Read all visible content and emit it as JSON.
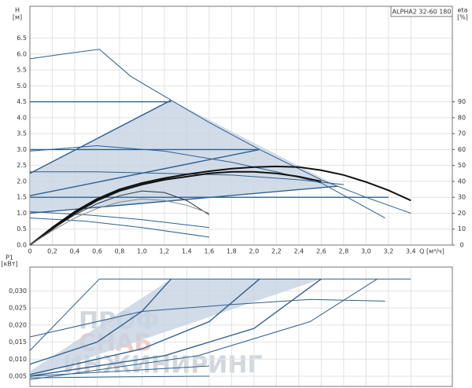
{
  "chart_data": [
    {
      "type": "line",
      "title": "ALPHA2 32-60 180",
      "y_label": "H",
      "y_unit": "[м]",
      "y2_label": "eta",
      "y2_unit": "[%]",
      "x_label": "Q [м³/ч]",
      "grid": true,
      "xlim": [
        0,
        3.77
      ],
      "ylim": [
        0,
        7.5
      ],
      "y2lim": [
        0,
        150
      ],
      "xticks": [
        0,
        {
          "value": 0.2,
          "label": "0,2"
        },
        {
          "value": 0.4,
          "label": "0,4"
        },
        {
          "value": 0.6,
          "label": "0,6"
        },
        {
          "value": 0.8,
          "label": "0,8"
        },
        {
          "value": 1,
          "label": "1,0"
        },
        {
          "value": 1.2,
          "label": "1,2"
        },
        {
          "value": 1.4,
          "label": "1,4"
        },
        {
          "value": 1.6,
          "label": "1,6"
        },
        {
          "value": 1.8,
          "label": "1,8"
        },
        {
          "value": 2,
          "label": "2,0"
        },
        {
          "value": 2.2,
          "label": "2,2"
        },
        {
          "value": 2.4,
          "label": "2,4"
        },
        {
          "value": 2.6,
          "label": "2,6"
        },
        {
          "value": 2.8,
          "label": "2,8"
        },
        {
          "value": 3,
          "label": "3,0"
        },
        {
          "value": 3.2,
          "label": "3,2"
        },
        {
          "value": 3.4,
          "label": "3,4"
        }
      ],
      "yticks": [
        {
          "value": 0,
          "label": "0.0"
        },
        0.5,
        {
          "value": 1,
          "label": "1.0"
        },
        1.5,
        {
          "value": 2,
          "label": "2.0"
        },
        2.5,
        {
          "value": 3,
          "label": "3.0"
        },
        3.5,
        {
          "value": 4,
          "label": "4.0"
        },
        4.5,
        {
          "value": 5,
          "label": "5.0"
        },
        5.5,
        {
          "value": 6,
          "label": "6.0"
        },
        6.5
      ],
      "y2ticks": [
        0,
        10,
        20,
        30,
        40,
        50,
        60,
        70,
        80,
        90
      ],
      "area_color": "#c5d3e2",
      "areas": [
        {
          "x": [
            0,
            0,
            1.26,
            2.75,
            2.2,
            0
          ],
          "values": [
            1.0,
            2.25,
            4.55,
            1.85,
            1.7,
            1.0
          ]
        }
      ],
      "series": [
        {
          "color": "#2f5f8e",
          "width": 1,
          "x": [
            0,
            0.3,
            0.62,
            0.9,
            1.26,
            1.6,
            2.05,
            2.6,
            3.0,
            3.4
          ],
          "values": [
            5.85,
            6.0,
            6.15,
            5.3,
            4.55,
            3.85,
            3.0,
            2.05,
            1.5,
            1.0
          ]
        },
        {
          "color": "#2f5f8e",
          "width": 1.4,
          "x": [
            0,
            1.26
          ],
          "values": [
            2.25,
            4.55
          ]
        },
        {
          "color": "#2f5f8e",
          "width": 1.4,
          "x": [
            0,
            2.05
          ],
          "values": [
            1.55,
            3.0
          ]
        },
        {
          "color": "#2f5f8e",
          "width": 1.4,
          "x": [
            0,
            2.75
          ],
          "values": [
            1.0,
            1.85
          ]
        },
        {
          "color": "#2f5f8e",
          "width": 1.4,
          "x": [
            0,
            1.26
          ],
          "values": [
            4.5,
            4.5
          ]
        },
        {
          "color": "#2f5f8e",
          "width": 1.4,
          "x": [
            0,
            2.05
          ],
          "values": [
            3.0,
            3.0
          ]
        },
        {
          "color": "#2f5f8e",
          "width": 1.4,
          "x": [
            0,
            3.2
          ],
          "values": [
            1.5,
            1.5
          ]
        },
        {
          "color": "#2f5f8e",
          "width": 1,
          "x": [
            0,
            0.6,
            1.2,
            1.8,
            2.2,
            2.6,
            3.17
          ],
          "values": [
            2.95,
            3.12,
            2.95,
            2.6,
            2.3,
            1.95,
            0.85
          ]
        },
        {
          "color": "#2f5f8e",
          "width": 1,
          "x": [
            0,
            0.6,
            1.2,
            1.8,
            2.4,
            2.8
          ],
          "values": [
            2.3,
            2.3,
            2.25,
            2.2,
            2.05,
            1.9
          ]
        },
        {
          "color": "#2f5f8e",
          "width": 1,
          "x": [
            0,
            0.5,
            1.0,
            1.6
          ],
          "values": [
            0.85,
            0.75,
            0.55,
            0.25
          ]
        },
        {
          "color": "#2f5f8e",
          "width": 1,
          "x": [
            0,
            0.5,
            1.0,
            1.6
          ],
          "values": [
            1.05,
            0.95,
            0.8,
            0.55
          ]
        },
        {
          "color": "#111111",
          "width": 2,
          "axis": "y2",
          "x": [
            0,
            0.2,
            0.4,
            0.6,
            0.8,
            1.0,
            1.2,
            1.4,
            1.6,
            1.8,
            2.0,
            2.2,
            2.4,
            2.6,
            2.8,
            3.0,
            3.2,
            3.4
          ],
          "values": [
            0,
            11,
            21,
            29,
            35,
            39,
            42,
            44.4,
            46.4,
            48,
            49,
            49.4,
            49,
            47,
            44,
            39.6,
            34.4,
            28
          ]
        },
        {
          "color": "#111111",
          "width": 2,
          "axis": "y2",
          "x": [
            0,
            0.2,
            0.4,
            0.6,
            0.8,
            1.0,
            1.2,
            1.4,
            1.6,
            1.8,
            2.0,
            2.2,
            2.4,
            2.6
          ],
          "values": [
            0,
            10,
            20,
            28,
            34,
            38,
            41,
            43,
            45,
            46,
            46,
            45,
            43,
            40
          ]
        },
        {
          "color": "#333333",
          "width": 1,
          "axis": "y2",
          "x": [
            0,
            0.2,
            0.4,
            0.6,
            0.8,
            1.0,
            1.2,
            1.4,
            1.6
          ],
          "values": [
            0,
            10,
            19,
            26,
            31,
            34,
            33,
            28,
            19
          ]
        },
        {
          "color": "#888888",
          "width": 1,
          "axis": "y2",
          "x": [
            0,
            0.2,
            0.4,
            0.6,
            0.8,
            1.0,
            1.2,
            1.4,
            1.6
          ],
          "values": [
            0,
            9,
            17,
            23,
            27,
            29,
            28,
            25,
            20
          ]
        }
      ]
    },
    {
      "type": "line",
      "y_label": "P1",
      "y_unit": "[кВт]",
      "grid": true,
      "xlim": [
        0,
        3.77
      ],
      "ylim": [
        0.002,
        0.037
      ],
      "xticks": [
        0,
        0.2,
        0.4,
        0.6,
        0.8,
        1,
        1.2,
        1.4,
        1.6,
        1.8,
        2,
        2.2,
        2.4,
        2.6,
        2.8,
        3,
        3.2,
        3.4
      ],
      "yticks": [
        {
          "value": 0.005,
          "label": "0,005"
        },
        {
          "value": 0.01,
          "label": "0,010"
        },
        {
          "value": 0.015,
          "label": "0,015"
        },
        {
          "value": 0.02,
          "label": "0,020"
        },
        {
          "value": 0.025,
          "label": "0,025"
        },
        {
          "value": 0.03,
          "label": "0,030"
        }
      ],
      "area_color": "#c5d3e2",
      "areas": [
        {
          "x": [
            0,
            1.26,
            2.6,
            0
          ],
          "values": [
            0.0065,
            0.0335,
            0.0335,
            0.0045
          ]
        }
      ],
      "series": [
        {
          "color": "#2f5f8e",
          "width": 1,
          "x": [
            0,
            0.62,
            3.4
          ],
          "values": [
            0.0125,
            0.0335,
            0.0335
          ]
        },
        {
          "color": "#2f5f8e",
          "width": 1.4,
          "x": [
            0,
            0.6,
            1.0,
            1.26
          ],
          "values": [
            0.0085,
            0.015,
            0.024,
            0.0335
          ]
        },
        {
          "color": "#2f5f8e",
          "width": 1.4,
          "x": [
            0,
            1.0,
            1.6,
            2.05
          ],
          "values": [
            0.0055,
            0.013,
            0.021,
            0.0335
          ]
        },
        {
          "color": "#2f5f8e",
          "width": 1.4,
          "x": [
            0,
            1.2,
            2.0,
            2.6
          ],
          "values": [
            0.005,
            0.011,
            0.019,
            0.0335
          ]
        },
        {
          "color": "#2f5f8e",
          "width": 1,
          "x": [
            0,
            1.5,
            2.5,
            3.1
          ],
          "values": [
            0.004,
            0.011,
            0.021,
            0.0335
          ]
        },
        {
          "color": "#2f5f8e",
          "width": 1,
          "x": [
            0,
            1.0,
            1.8,
            2.5,
            3.17
          ],
          "values": [
            0.0165,
            0.024,
            0.026,
            0.0275,
            0.027
          ]
        },
        {
          "color": "#2f5f8e",
          "width": 1,
          "x": [
            0,
            0.8,
            1.6
          ],
          "values": [
            0.005,
            0.0065,
            0.008
          ]
        },
        {
          "color": "#2f5f8e",
          "width": 1,
          "x": [
            0,
            0.8,
            1.6
          ],
          "values": [
            0.0045,
            0.0048,
            0.005
          ]
        }
      ]
    }
  ],
  "watermark": [
    "ПРОФ",
    "СНАБ",
    "ИНЖИНИРИНГ"
  ]
}
